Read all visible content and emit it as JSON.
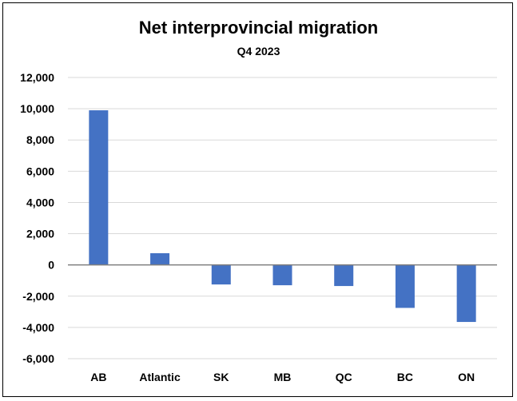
{
  "chart_data": {
    "type": "bar",
    "title": "Net interprovincial migration",
    "subtitle": "Q4 2023",
    "xlabel": "",
    "ylabel": "",
    "categories": [
      "AB",
      "Atlantic",
      "SK",
      "MB",
      "QC",
      "BC",
      "ON"
    ],
    "values": [
      9900,
      750,
      -1250,
      -1300,
      -1350,
      -2750,
      -3650
    ],
    "ylim": [
      -6000,
      12000
    ],
    "yticks": [
      12000,
      10000,
      8000,
      6000,
      4000,
      2000,
      0,
      -2000,
      -4000,
      -6000
    ],
    "ytick_labels": [
      "12,000",
      "10,000",
      "8,000",
      "6,000",
      "4,000",
      "2,000",
      "0",
      "-2,000",
      "-4,000",
      "-6,000"
    ],
    "grid": true,
    "legend": "none",
    "bar_color": "#4472C4",
    "grid_color": "#d9d9d9",
    "axis_color": "#7f7f7f"
  }
}
